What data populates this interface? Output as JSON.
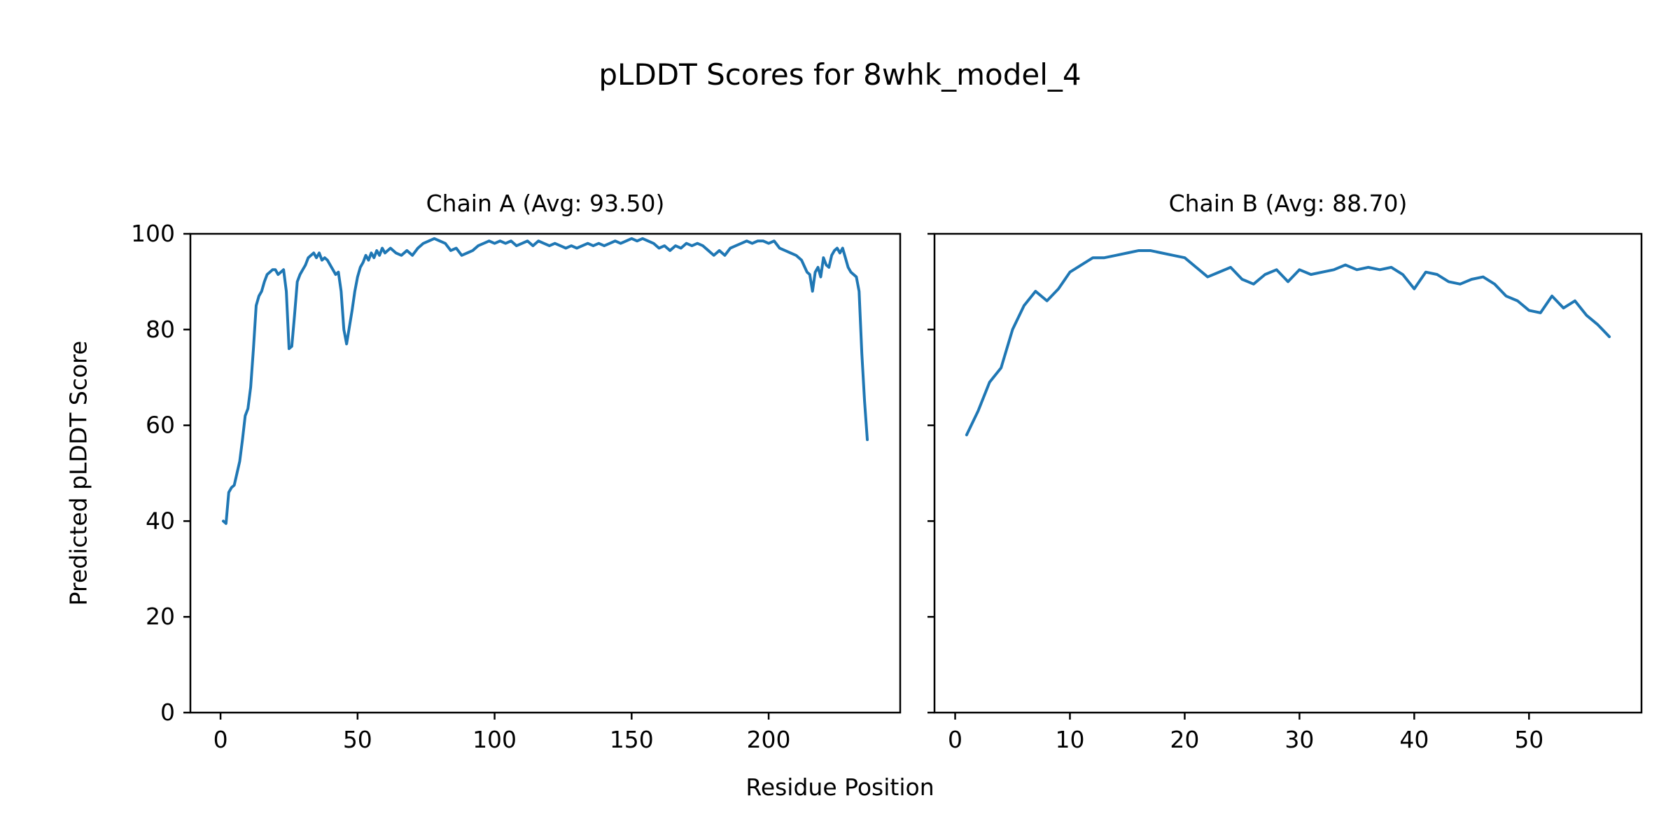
{
  "figure": {
    "title": "pLDDT Scores for 8whk_model_4",
    "xlabel": "Residue Position",
    "ylabel": "Predicted pLDDT Score",
    "line_color": "#1f77b4",
    "background": "#ffffff",
    "grid": false,
    "legend": "none"
  },
  "chart_data": [
    {
      "type": "line",
      "title": "Chain A (Avg: 93.50)",
      "series_name": "Chain A pLDDT",
      "avg": 93.5,
      "xlim": [
        -11,
        248
      ],
      "ylim": [
        0,
        100
      ],
      "xticks": [
        0,
        50,
        100,
        150,
        200
      ],
      "yticks": [
        0,
        20,
        40,
        60,
        80,
        100
      ],
      "ytick_labels_visible": true,
      "x": [
        1,
        2,
        3,
        4,
        5,
        6,
        7,
        8,
        9,
        10,
        11,
        12,
        13,
        14,
        15,
        16,
        17,
        18,
        19,
        20,
        21,
        22,
        23,
        24,
        25,
        26,
        27,
        28,
        29,
        30,
        31,
        32,
        33,
        34,
        35,
        36,
        37,
        38,
        39,
        40,
        41,
        42,
        43,
        44,
        45,
        46,
        47,
        48,
        49,
        50,
        51,
        52,
        53,
        54,
        55,
        56,
        57,
        58,
        59,
        60,
        62,
        64,
        66,
        68,
        70,
        72,
        74,
        76,
        78,
        80,
        82,
        84,
        86,
        88,
        90,
        92,
        94,
        96,
        98,
        100,
        102,
        104,
        106,
        108,
        110,
        112,
        114,
        116,
        118,
        120,
        122,
        124,
        126,
        128,
        130,
        132,
        134,
        136,
        138,
        140,
        142,
        144,
        146,
        148,
        150,
        152,
        154,
        156,
        158,
        160,
        162,
        164,
        166,
        168,
        170,
        172,
        174,
        176,
        178,
        180,
        182,
        184,
        186,
        188,
        190,
        192,
        194,
        196,
        198,
        200,
        202,
        204,
        206,
        208,
        210,
        212,
        214,
        215,
        216,
        217,
        218,
        219,
        220,
        221,
        222,
        223,
        224,
        225,
        226,
        227,
        228,
        229,
        230,
        231,
        232,
        233,
        234,
        235,
        236
      ],
      "y": [
        40,
        39.5,
        46,
        47,
        47.5,
        50,
        52.5,
        57,
        62,
        63.5,
        68,
        76,
        85,
        87,
        88,
        90,
        91.5,
        92,
        92.5,
        92.5,
        91.5,
        92,
        92.5,
        88,
        76,
        76.5,
        83,
        90,
        91.5,
        92.5,
        93.5,
        95,
        95.5,
        96,
        95,
        96,
        94.5,
        95,
        94.5,
        93.5,
        92.5,
        91.5,
        92,
        88,
        80,
        77,
        80.5,
        84,
        88,
        91,
        93,
        94,
        95.5,
        94.5,
        96,
        95,
        96.5,
        95.5,
        97,
        96,
        97,
        96,
        95.5,
        96.5,
        95.5,
        97,
        98,
        98.5,
        99,
        98.5,
        98,
        96.5,
        97,
        95.5,
        96,
        96.5,
        97.5,
        98,
        98.5,
        98,
        98.5,
        98,
        98.5,
        97.5,
        98,
        98.5,
        97.5,
        98.5,
        98,
        97.5,
        98,
        97.5,
        97,
        97.5,
        97,
        97.5,
        98,
        97.5,
        98,
        97.5,
        98,
        98.5,
        98,
        98.5,
        99,
        98.5,
        99,
        98.5,
        98,
        97,
        97.5,
        96.5,
        97.5,
        97,
        98,
        97.5,
        98,
        97.5,
        96.5,
        95.5,
        96.5,
        95.5,
        97,
        97.5,
        98,
        98.5,
        98,
        98.5,
        98.5,
        98,
        98.5,
        97,
        96.5,
        96,
        95.5,
        94.5,
        92,
        91.5,
        88,
        92,
        93,
        91,
        95,
        93.5,
        93,
        95.5,
        96.5,
        97,
        96,
        97,
        95,
        93,
        92,
        91.5,
        91,
        88,
        75,
        65,
        57
      ]
    },
    {
      "type": "line",
      "title": "Chain B (Avg: 88.70)",
      "series_name": "Chain B pLDDT",
      "avg": 88.7,
      "xlim": [
        -1.8,
        59.8
      ],
      "ylim": [
        0,
        100
      ],
      "xticks": [
        0,
        10,
        20,
        30,
        40,
        50
      ],
      "yticks": [
        0,
        20,
        40,
        60,
        80,
        100
      ],
      "ytick_labels_visible": false,
      "x": [
        1,
        2,
        3,
        4,
        5,
        6,
        7,
        8,
        9,
        10,
        11,
        12,
        13,
        14,
        15,
        16,
        17,
        18,
        19,
        20,
        21,
        22,
        23,
        24,
        25,
        26,
        27,
        28,
        29,
        30,
        31,
        32,
        33,
        34,
        35,
        36,
        37,
        38,
        39,
        40,
        41,
        42,
        43,
        44,
        45,
        46,
        47,
        48,
        49,
        50,
        51,
        52,
        53,
        54,
        55,
        56,
        57
      ],
      "y": [
        58,
        63,
        69,
        72,
        80,
        85,
        88,
        86,
        88.5,
        92,
        93.5,
        95,
        95,
        95.5,
        96,
        96.5,
        96.5,
        96,
        95.5,
        95,
        93,
        91,
        92,
        93,
        90.5,
        89.5,
        91.5,
        92.5,
        90,
        92.5,
        91.5,
        92,
        92.5,
        93.5,
        92.5,
        93,
        92.5,
        93,
        91.5,
        88.5,
        92,
        91.5,
        90,
        89.5,
        90.5,
        91,
        89.5,
        87,
        86,
        84,
        83.5,
        87,
        84.5,
        86,
        83,
        81,
        78.5
      ]
    }
  ]
}
